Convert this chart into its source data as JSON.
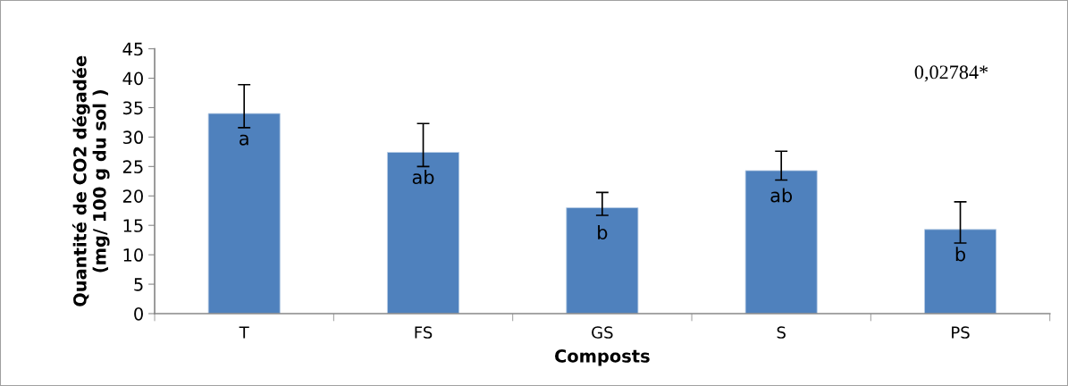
{
  "chart_data": {
    "type": "bar",
    "xlabel": "Composts",
    "ylabel": "Quantité de CO2 dégadée\n(mg/ 100 g du sol )",
    "categories": [
      "T",
      "FS",
      "GS",
      "S",
      "PS"
    ],
    "values": [
      34.0,
      27.4,
      18.0,
      24.3,
      14.3
    ],
    "errors": [
      [
        31.6,
        38.9
      ],
      [
        25.0,
        32.3
      ],
      [
        16.7,
        20.6
      ],
      [
        22.7,
        27.6
      ],
      [
        12.0,
        19.0
      ]
    ],
    "color": "#4f81bd",
    "ylim": [
      0,
      45
    ],
    "yticks": [
      0,
      5,
      10,
      15,
      20,
      25,
      30,
      35,
      40,
      45
    ],
    "grid": false,
    "legend": false,
    "value_labels": [
      "a",
      "ab",
      "b",
      "ab",
      "b"
    ],
    "annotations": [
      "0,02784*"
    ]
  }
}
